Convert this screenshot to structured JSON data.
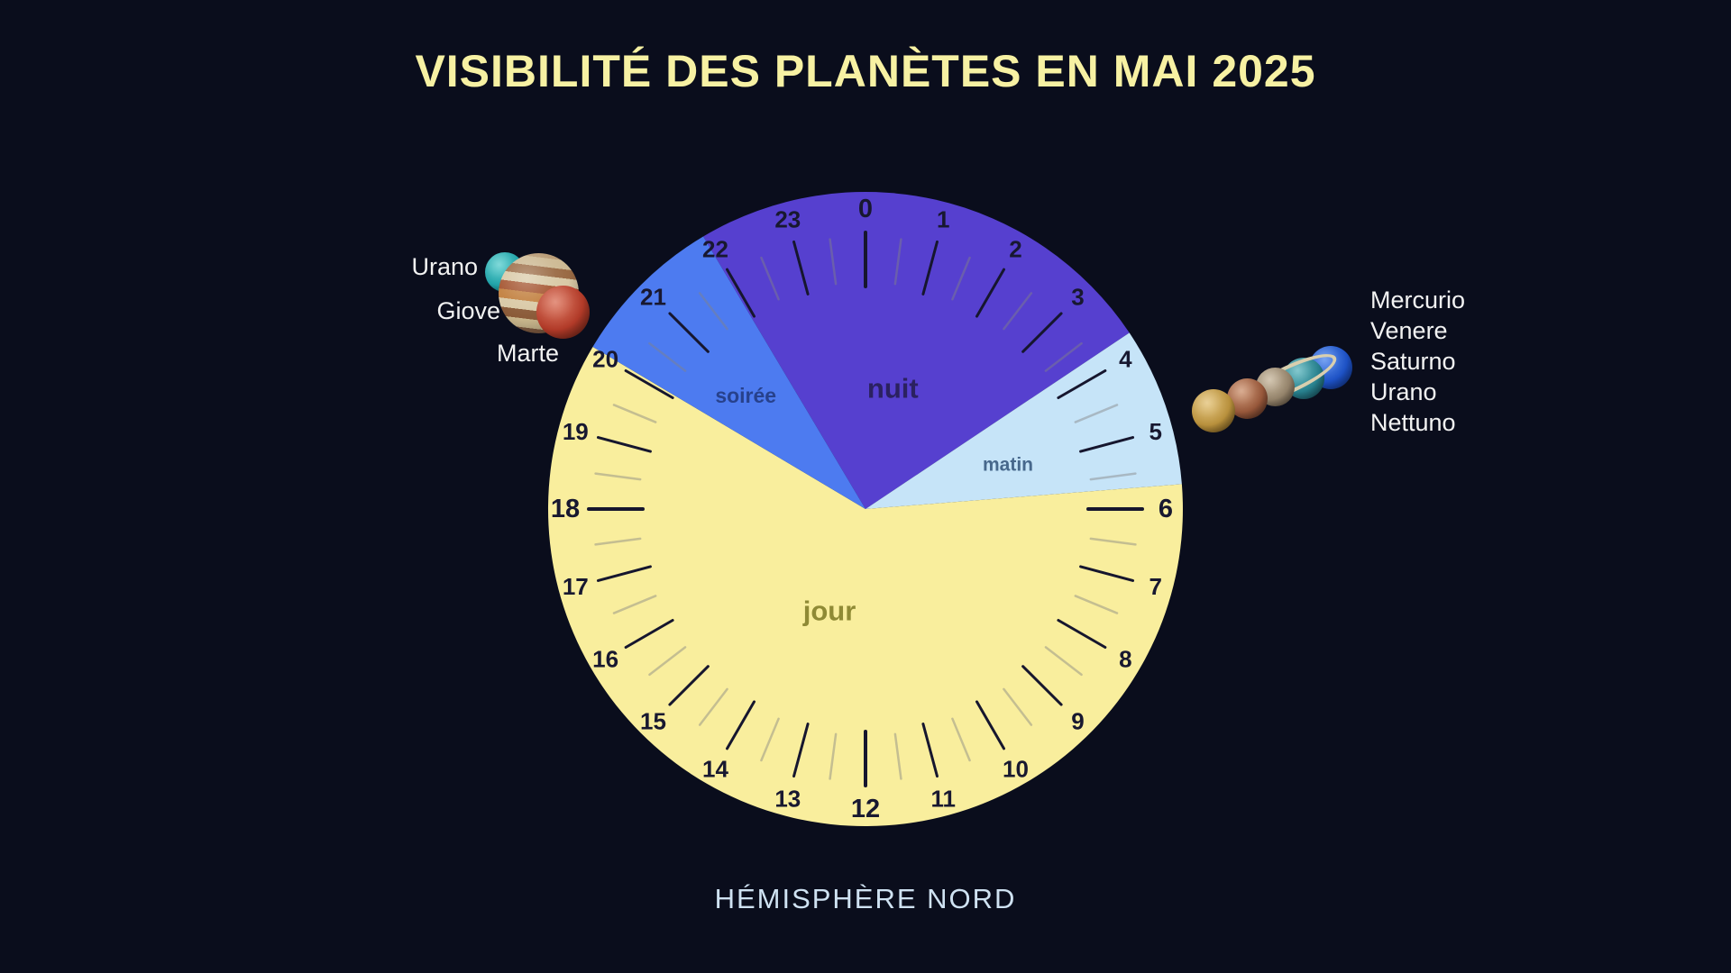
{
  "title": "VISIBILITÉ DES PLANÈTES EN MAI 2025",
  "subtitle": "HÉMISPHÈRE NORD",
  "colors": {
    "background": "#0a0d1c",
    "title": "#f7f1a3",
    "subtitle": "#cfe2f2",
    "hour_tick": "#16162e",
    "half_tick": "rgba(130,130,130,0.45)",
    "hour_label": "#181830",
    "planet_label": "#f2f2f2",
    "saturn_ring": "#d9cfae"
  },
  "chart_data": {
    "type": "pie",
    "title": "VISIBILITÉ DES PLANÈTES EN MAI 2025",
    "subtitle": "HÉMISPHÈRE NORD",
    "clock": {
      "hours_total": 24,
      "zero_at_top": true,
      "clockwise": true,
      "bold_hours": [
        0,
        6,
        12,
        18
      ]
    },
    "hour_labels": [
      "0",
      "1",
      "2",
      "3",
      "4",
      "5",
      "6",
      "7",
      "8",
      "9",
      "10",
      "11",
      "12",
      "13",
      "14",
      "15",
      "16",
      "17",
      "18",
      "19",
      "20",
      "21",
      "22",
      "23"
    ],
    "segments": [
      {
        "label": "nuit",
        "start_hour": 21.95,
        "end_hour": 3.75,
        "duration_hours": 5.8,
        "color": "#5640cf",
        "label_color": "#2b2160",
        "label_size": 31,
        "label_weight": 700,
        "label_pos": {
          "hour": 0.85,
          "r": 0.39
        }
      },
      {
        "label": "matin",
        "start_hour": 3.75,
        "end_hour": 5.7,
        "duration_hours": 1.95,
        "color": "#c6e4f8",
        "label_color": "#47688c",
        "label_size": 21,
        "label_weight": 700,
        "label_pos": {
          "hour": 4.85,
          "r": 0.47
        }
      },
      {
        "label": "jour",
        "start_hour": 5.7,
        "end_hour": 20.05,
        "duration_hours": 14.35,
        "color": "#f9ee9d",
        "label_color": "#8f8a35",
        "label_size": 31,
        "label_weight": 700,
        "label_pos": {
          "hour": 13.3,
          "r": 0.34
        }
      },
      {
        "label": "soirée",
        "start_hour": 20.05,
        "end_hour": 21.95,
        "duration_hours": 1.9,
        "color": "#4d7bf0",
        "label_color": "#27418c",
        "label_size": 23,
        "label_weight": 700,
        "label_pos": {
          "hour": 20.9,
          "r": 0.52
        }
      }
    ],
    "annotations": {
      "evening_planets": {
        "labels": [
          "Urano",
          "Giove",
          "Marte"
        ],
        "position_hour": 21
      },
      "morning_planets": {
        "labels": [
          "Mercurio",
          "Venere",
          "Saturno",
          "Urano",
          "Nettuno"
        ],
        "position_hour": 4.5
      }
    }
  },
  "planet_icons": {
    "urano_left": {
      "hi": "#49c9c9",
      "base": "#21a2a8",
      "lo": "#0e5a63"
    },
    "giove": {
      "stripes": [
        "#b89a74",
        "#cdb993",
        "#9a6a44",
        "#d9c9a6",
        "#a4542f",
        "#c2803f",
        "#d9c9a6",
        "#8a5a38",
        "#c9b68c",
        "#7e5a40"
      ]
    },
    "marte": {
      "hi": "#d8654a",
      "base": "#b13a28",
      "lo": "#591c12"
    },
    "venere": {
      "hi": "#e0bc6a",
      "base": "#b8903c",
      "lo": "#5e4414"
    },
    "mercurio": {
      "hi": "#c98a64",
      "base": "#96573a",
      "lo": "#45251a"
    },
    "saturno": {
      "hi": "#c2b093",
      "base": "#93826a",
      "lo": "#4e4233"
    },
    "urano_right": {
      "hi": "#4fb0b8",
      "base": "#277f8c",
      "lo": "#123f4a"
    },
    "nettuno": {
      "hi": "#3f7ceb",
      "base": "#1d51c4",
      "lo": "#0c2a72"
    }
  }
}
